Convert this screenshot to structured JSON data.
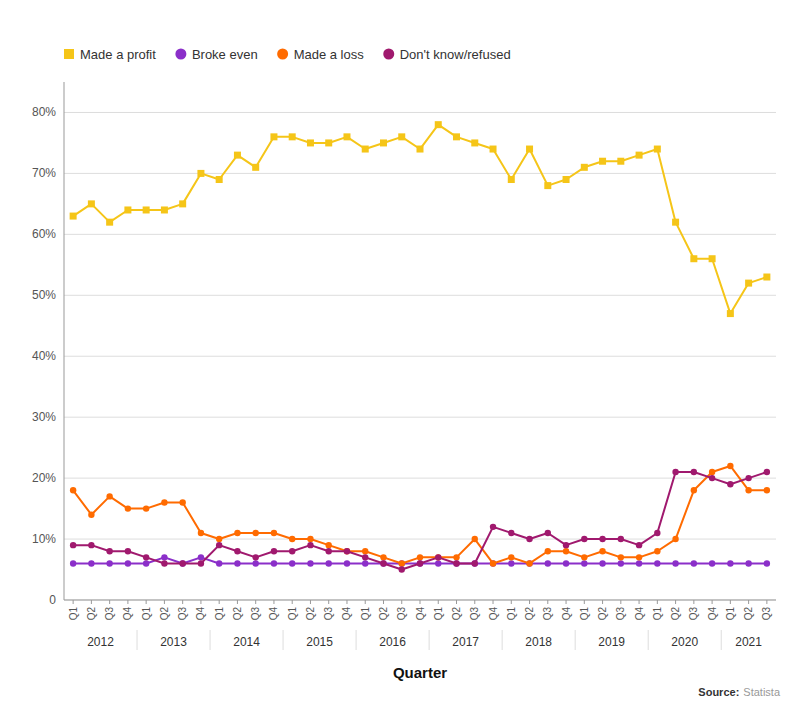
{
  "chart_data": {
    "type": "line",
    "xlabel": "Quarter",
    "categories": [
      "Q1",
      "Q2",
      "Q3",
      "Q4",
      "Q1",
      "Q2",
      "Q3",
      "Q4",
      "Q1",
      "Q2",
      "Q3",
      "Q4",
      "Q1",
      "Q2",
      "Q3",
      "Q4",
      "Q1",
      "Q2",
      "Q3",
      "Q4",
      "Q1",
      "Q2",
      "Q3",
      "Q4",
      "Q1",
      "Q2",
      "Q3",
      "Q4",
      "Q1",
      "Q2",
      "Q3",
      "Q4",
      "Q1",
      "Q2",
      "Q3",
      "Q4",
      "Q1",
      "Q2",
      "Q3"
    ],
    "annotations": [
      "2012",
      "2013",
      "2014",
      "2015",
      "2016",
      "2017",
      "2018",
      "2019",
      "2020",
      "2021"
    ],
    "series": [
      {
        "name": "Made a profit",
        "color": "#F5C518",
        "marker": "square",
        "values": [
          63,
          65,
          62,
          64,
          64,
          64,
          65,
          70,
          69,
          73,
          71,
          76,
          76,
          75,
          75,
          76,
          74,
          75,
          76,
          74,
          78,
          76,
          75,
          74,
          69,
          74,
          68,
          69,
          71,
          72,
          72,
          73,
          74,
          62,
          56,
          56,
          47,
          52,
          53
        ]
      },
      {
        "name": "Broke even",
        "color": "#8B2FC9",
        "marker": "circle",
        "values": [
          6,
          6,
          6,
          6,
          6,
          7,
          6,
          7,
          6,
          6,
          6,
          6,
          6,
          6,
          6,
          6,
          6,
          6,
          6,
          6,
          6,
          6,
          6,
          6,
          6,
          6,
          6,
          6,
          6,
          6,
          6,
          6,
          6,
          6,
          6,
          6,
          6,
          6,
          6
        ]
      },
      {
        "name": "Made a loss",
        "color": "#FF6B00",
        "marker": "circle",
        "values": [
          18,
          14,
          17,
          15,
          15,
          16,
          16,
          11,
          10,
          11,
          11,
          11,
          10,
          10,
          9,
          8,
          8,
          7,
          6,
          7,
          7,
          7,
          10,
          6,
          7,
          6,
          8,
          8,
          7,
          8,
          7,
          7,
          8,
          10,
          18,
          21,
          22,
          18,
          18
        ]
      },
      {
        "name": "Don't know/refused",
        "color": "#A0196E",
        "marker": "circle",
        "values": [
          9,
          9,
          8,
          8,
          7,
          6,
          6,
          6,
          9,
          8,
          7,
          8,
          8,
          9,
          8,
          8,
          7,
          6,
          5,
          6,
          7,
          6,
          6,
          12,
          11,
          10,
          11,
          9,
          10,
          10,
          10,
          9,
          11,
          21,
          21,
          20,
          19,
          20,
          21
        ]
      }
    ],
    "ylim": [
      0,
      85
    ],
    "yticks": [
      0,
      {
        "value": 10,
        "label": "10%"
      },
      {
        "value": 20,
        "label": "20%"
      },
      {
        "value": 30,
        "label": "30%"
      },
      {
        "value": 40,
        "label": "40%"
      },
      {
        "value": 50,
        "label": "50%"
      },
      {
        "value": 60,
        "label": "60%"
      },
      {
        "value": 70,
        "label": "70%"
      },
      {
        "value": 80,
        "label": "80%"
      }
    ],
    "grid": true,
    "legend": "top-left",
    "source_label": "Source:",
    "source_text": "Statista"
  }
}
